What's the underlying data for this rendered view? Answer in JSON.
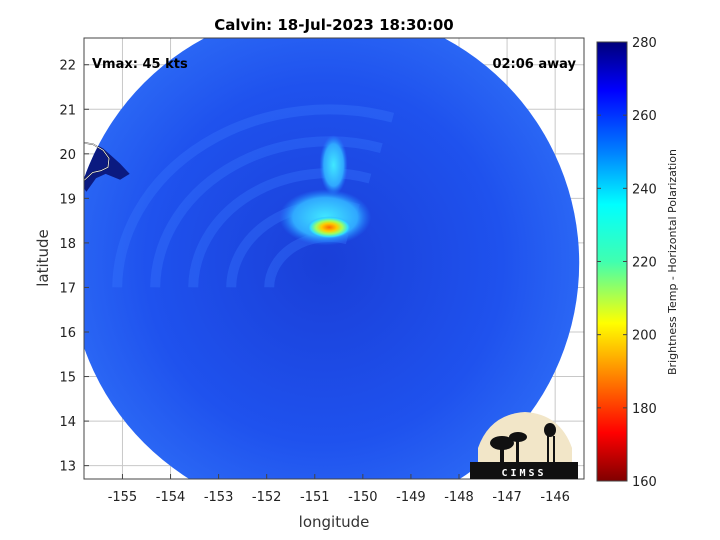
{
  "chart_data": {
    "type": "heatmap",
    "title": "Calvin: 18-Jul-2023 18:30:00",
    "xlabel": "longitude",
    "ylabel": "latitude",
    "xlim": [
      -155.8,
      -145.4
    ],
    "ylim": [
      12.7,
      22.6
    ],
    "xticks": [
      -155,
      -154,
      -153,
      -152,
      -151,
      -150,
      -149,
      -148,
      -147,
      -146
    ],
    "yticks": [
      13,
      14,
      15,
      16,
      17,
      18,
      19,
      20,
      21,
      22
    ],
    "grid": true,
    "annotations": {
      "vmax": "Vmax: 45 kts",
      "time_away": "02:06 away"
    },
    "colorbar": {
      "label": "Brightness Temp - Horizontal Polarization",
      "min": 160,
      "max": 280,
      "ticks": [
        160,
        180,
        200,
        220,
        240,
        260,
        280
      ],
      "colormap": "jet"
    },
    "swath": {
      "center": [
        -150.8,
        17.55
      ],
      "radius_deg": 5.3
    },
    "features": [
      {
        "name": "storm-center",
        "lon": -150.7,
        "lat": 18.35,
        "min_temp": 192
      },
      {
        "name": "rainband-north",
        "lon": -150.4,
        "lat": 19.3,
        "min_temp": 235
      },
      {
        "name": "hawaii-island",
        "lon": -155.4,
        "lat": 19.6,
        "temp": 280
      }
    ],
    "logo": "CIMSS"
  },
  "colors": {
    "background_field": "#1e4be6",
    "land": "#0b1a80"
  }
}
